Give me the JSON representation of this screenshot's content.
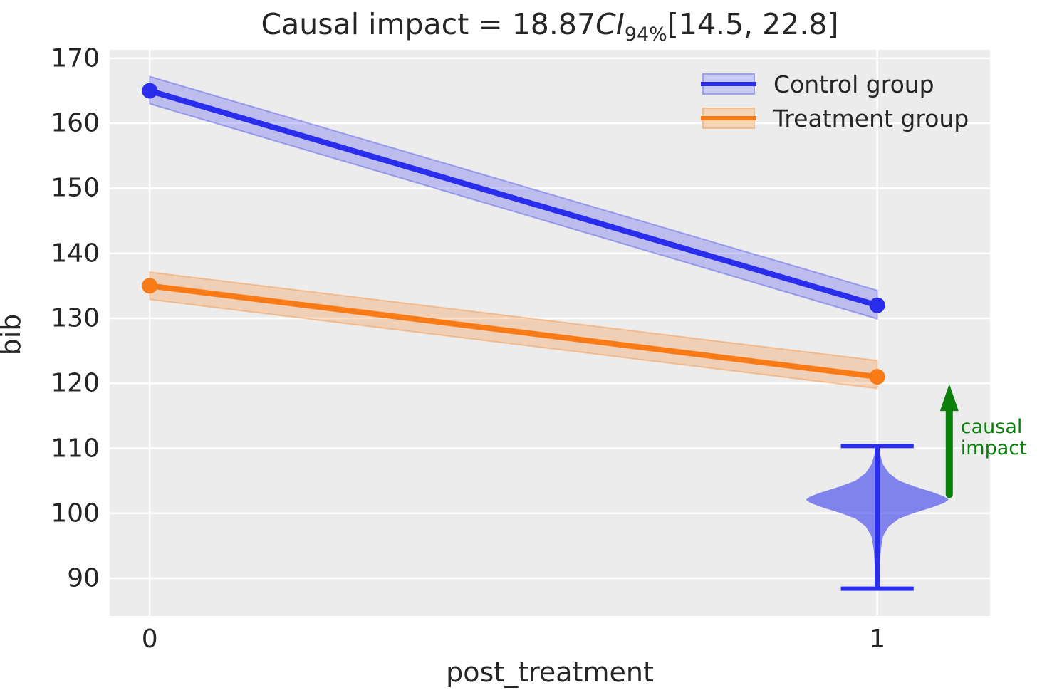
{
  "colors": {
    "background": "#ffffff",
    "plot_background": "#ececec",
    "gridline": "#ffffff",
    "text": "#262626",
    "control": "#2a2eec",
    "treatment": "#f97b17",
    "band_opacity": 0.25,
    "band_edge_opacity": 0.45,
    "violin_fill_opacity": 0.55,
    "annotation_green": "#0a800a",
    "control_band_solid": "#c9caf6",
    "control_band_edge_solid": "#9fa0f0",
    "treatment_band_solid": "#f6d4b6",
    "treatment_band_edge_solid": "#efbd92"
  },
  "figure": {
    "title": {
      "prefix": "Causal impact = 18.87",
      "ci": "CI",
      "ci_sub": "94%",
      "interval": "[14.5, 22.8]"
    },
    "y_axis": {
      "label": "bib",
      "ticks": [
        "90",
        "100",
        "110",
        "120",
        "130",
        "140",
        "150",
        "160",
        "170"
      ],
      "tick_values": [
        90,
        100,
        110,
        120,
        130,
        140,
        150,
        160,
        170
      ],
      "lim": [
        84.2,
        171.3
      ]
    },
    "x_axis": {
      "label": "post_treatment",
      "ticks": [
        "0",
        "1"
      ],
      "tick_values": [
        0,
        1
      ],
      "lim": [
        -0.055,
        1.155
      ]
    },
    "legend": {
      "entries": [
        {
          "label": "Control group"
        },
        {
          "label": "Treatment group"
        }
      ]
    }
  },
  "chart_data": {
    "type": "line",
    "title": "Causal impact = 18.87 CI94% [14.5, 22.8]",
    "xlabel": "post_treatment",
    "ylabel": "bib",
    "xlim": [
      -0.055,
      1.155
    ],
    "ylim": [
      84.2,
      171.3
    ],
    "grid": true,
    "legend_position": "upper right",
    "series": [
      {
        "name": "Control group",
        "x": [
          0,
          1
        ],
        "y": [
          165,
          132
        ],
        "ci_lower": [
          163.0,
          129.9
        ],
        "ci_upper": [
          167.2,
          134.3
        ],
        "color": "#2a2eec"
      },
      {
        "name": "Treatment group",
        "x": [
          0,
          1
        ],
        "y": [
          135,
          121
        ],
        "ci_lower": [
          132.9,
          119.2
        ],
        "ci_upper": [
          137.1,
          123.5
        ],
        "color": "#f97b17"
      }
    ],
    "impact_violin": {
      "x": 1,
      "whisker_low": 88.4,
      "whisker_high": 110.35,
      "mode": 102.1,
      "cap_halfwidth": 0.05,
      "profile": [
        [
          110.35,
          0.002
        ],
        [
          109.0,
          0.004
        ],
        [
          107.5,
          0.008
        ],
        [
          106.2,
          0.016
        ],
        [
          105.0,
          0.03
        ],
        [
          104.1,
          0.052
        ],
        [
          103.3,
          0.075
        ],
        [
          102.6,
          0.092
        ],
        [
          102.1,
          0.098
        ],
        [
          101.6,
          0.092
        ],
        [
          100.9,
          0.075
        ],
        [
          100.1,
          0.052
        ],
        [
          99.2,
          0.03
        ],
        [
          98.0,
          0.016
        ],
        [
          96.5,
          0.008
        ],
        [
          94.5,
          0.005
        ],
        [
          92.0,
          0.0035
        ],
        [
          88.45,
          0.003
        ]
      ]
    },
    "annotation": {
      "label_lines": [
        "causal",
        "impact"
      ],
      "x": 1.099,
      "y_from": 102.9,
      "y_to": 119.9
    },
    "causal_impact": {
      "value": 18.87,
      "ci_level": "94%",
      "ci_lower": 14.5,
      "ci_upper": 22.8
    }
  }
}
